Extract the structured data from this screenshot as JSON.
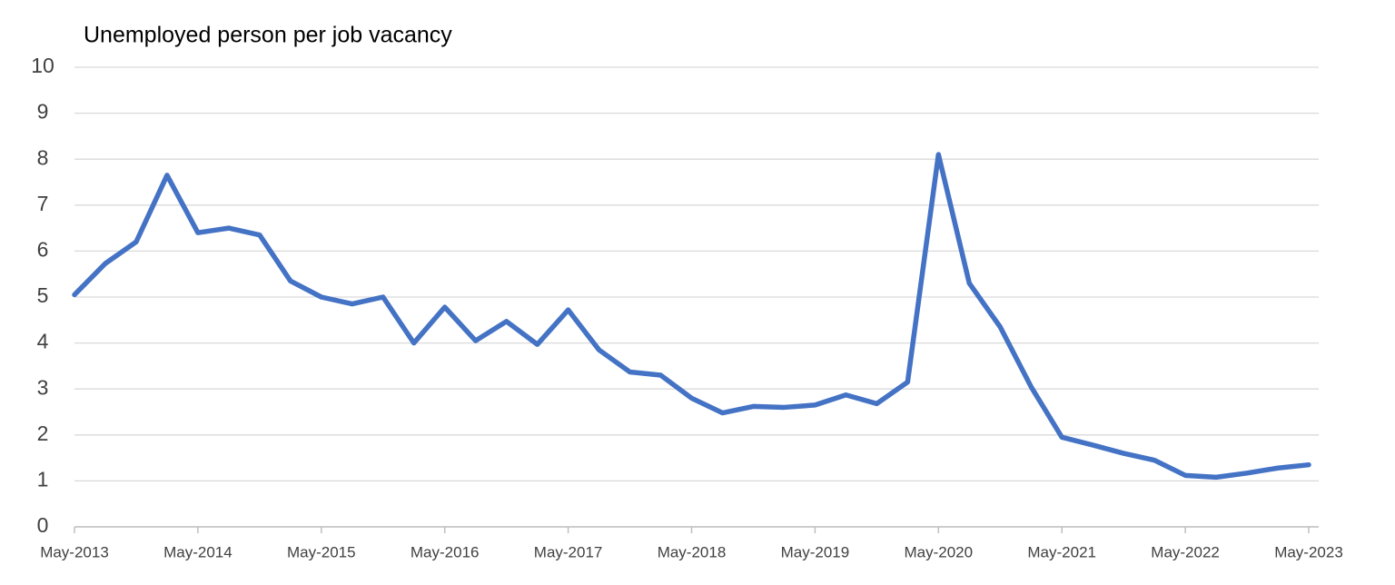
{
  "chart_data": {
    "type": "line",
    "title": "Unemployed person per job vacancy",
    "categories": [
      "May-2013",
      null,
      null,
      null,
      "May-2014",
      null,
      null,
      null,
      "May-2015",
      null,
      null,
      null,
      "May-2016",
      null,
      null,
      null,
      "May-2017",
      null,
      null,
      null,
      "May-2018",
      null,
      null,
      null,
      "May-2019",
      null,
      null,
      null,
      "May-2020",
      null,
      null,
      null,
      "May-2021",
      null,
      null,
      null,
      "May-2022",
      null,
      null,
      null,
      "May-2023"
    ],
    "values": [
      5.05,
      5.73,
      6.2,
      7.65,
      6.4,
      6.5,
      6.35,
      5.35,
      5.0,
      4.85,
      5.0,
      4.0,
      4.78,
      4.05,
      4.47,
      3.97,
      4.72,
      3.85,
      3.37,
      3.3,
      2.8,
      2.48,
      2.62,
      2.6,
      2.65,
      2.87,
      2.68,
      3.15,
      8.1,
      5.3,
      4.35,
      3.05,
      1.95,
      1.78,
      1.6,
      1.45,
      1.12,
      1.08,
      1.17,
      1.28,
      1.35
    ],
    "color": "#4472c4",
    "ylim": [
      0,
      10
    ],
    "yticks": [
      0,
      1,
      2,
      3,
      4,
      5,
      6,
      7,
      8,
      9,
      10
    ],
    "grid": true
  }
}
